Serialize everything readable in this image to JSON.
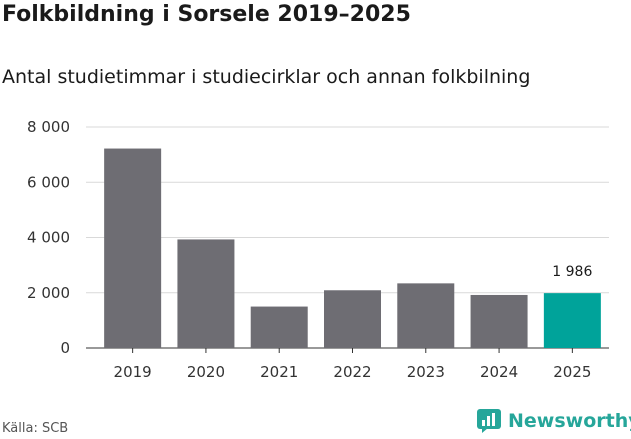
{
  "title": "Folkbildning i Sorsele 2019–2025",
  "subtitle": "Antal studietimmar i studiecirklar och annan folkbilning",
  "source": "Källa: SCB",
  "brand": "Newsworthy",
  "colors": {
    "bar": "#6e6d73",
    "highlight": "#00a39a",
    "grid": "#d9d9d9",
    "brand": "#26a69a"
  },
  "chart_data": {
    "type": "bar",
    "categories": [
      "2019",
      "2020",
      "2021",
      "2022",
      "2023",
      "2024",
      "2025"
    ],
    "values": [
      7220,
      3930,
      1500,
      2090,
      2340,
      1920,
      1986
    ],
    "highlight_index": 6,
    "value_labels": {
      "6": "1 986"
    },
    "yticks": [
      0,
      2000,
      4000,
      6000,
      8000
    ],
    "ytick_labels": [
      "0",
      "2 000",
      "4 000",
      "6 000",
      "8 000"
    ],
    "ylim": [
      0,
      8000
    ],
    "grid": true
  }
}
